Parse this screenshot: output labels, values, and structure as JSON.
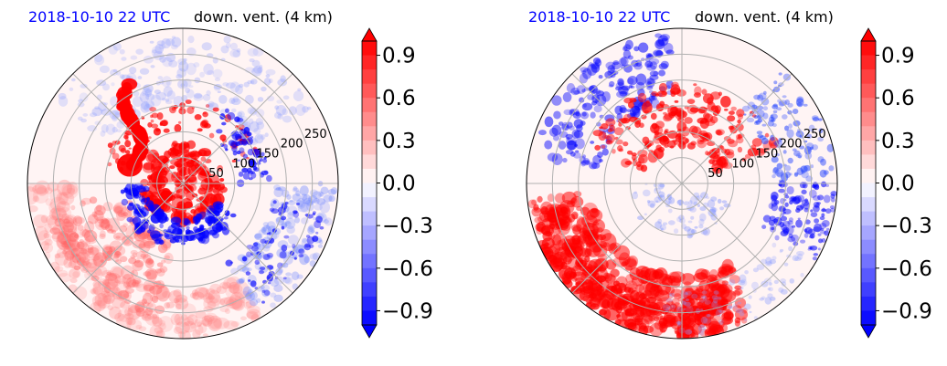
{
  "chart_data": [
    {
      "type": "heatmap",
      "subtype": "polar",
      "title_left": "2018-10-10 22 UTC",
      "title_right": "down. vent. (4 km)",
      "radial_ticks": [
        "50",
        "100",
        "150",
        "200",
        "250"
      ],
      "radial_tick_values": [
        50,
        100,
        150,
        200,
        250
      ],
      "radial_max": 300,
      "colorbar": {
        "ticks": [
          "0.9",
          "0.6",
          "0.3",
          "0.0",
          "−0.3",
          "−0.6",
          "−0.9"
        ],
        "tick_values": [
          0.9,
          0.6,
          0.3,
          0.0,
          -0.3,
          -0.6,
          -0.9
        ],
        "range": [
          -1.0,
          1.0
        ],
        "colormap": "bwr"
      },
      "grid": true
    },
    {
      "type": "heatmap",
      "subtype": "polar",
      "title_left": "2018-10-10 22 UTC",
      "title_right": "down. vent. (4 km)",
      "radial_ticks": [
        "50",
        "100",
        "150",
        "200",
        "250"
      ],
      "radial_tick_values": [
        50,
        100,
        150,
        200,
        250
      ],
      "radial_max": 300,
      "colorbar": {
        "ticks": [
          "0.9",
          "0.6",
          "0.3",
          "0.0",
          "−0.3",
          "−0.6",
          "−0.9"
        ],
        "tick_values": [
          0.9,
          0.6,
          0.3,
          0.0,
          -0.3,
          -0.6,
          -0.9
        ],
        "range": [
          -1.0,
          1.0
        ],
        "colormap": "bwr"
      },
      "grid": true
    }
  ],
  "colors": {
    "title_accent": "#0000ff",
    "positive": "#ff0000",
    "negative": "#0000ff",
    "neutral": "#ffffff"
  }
}
